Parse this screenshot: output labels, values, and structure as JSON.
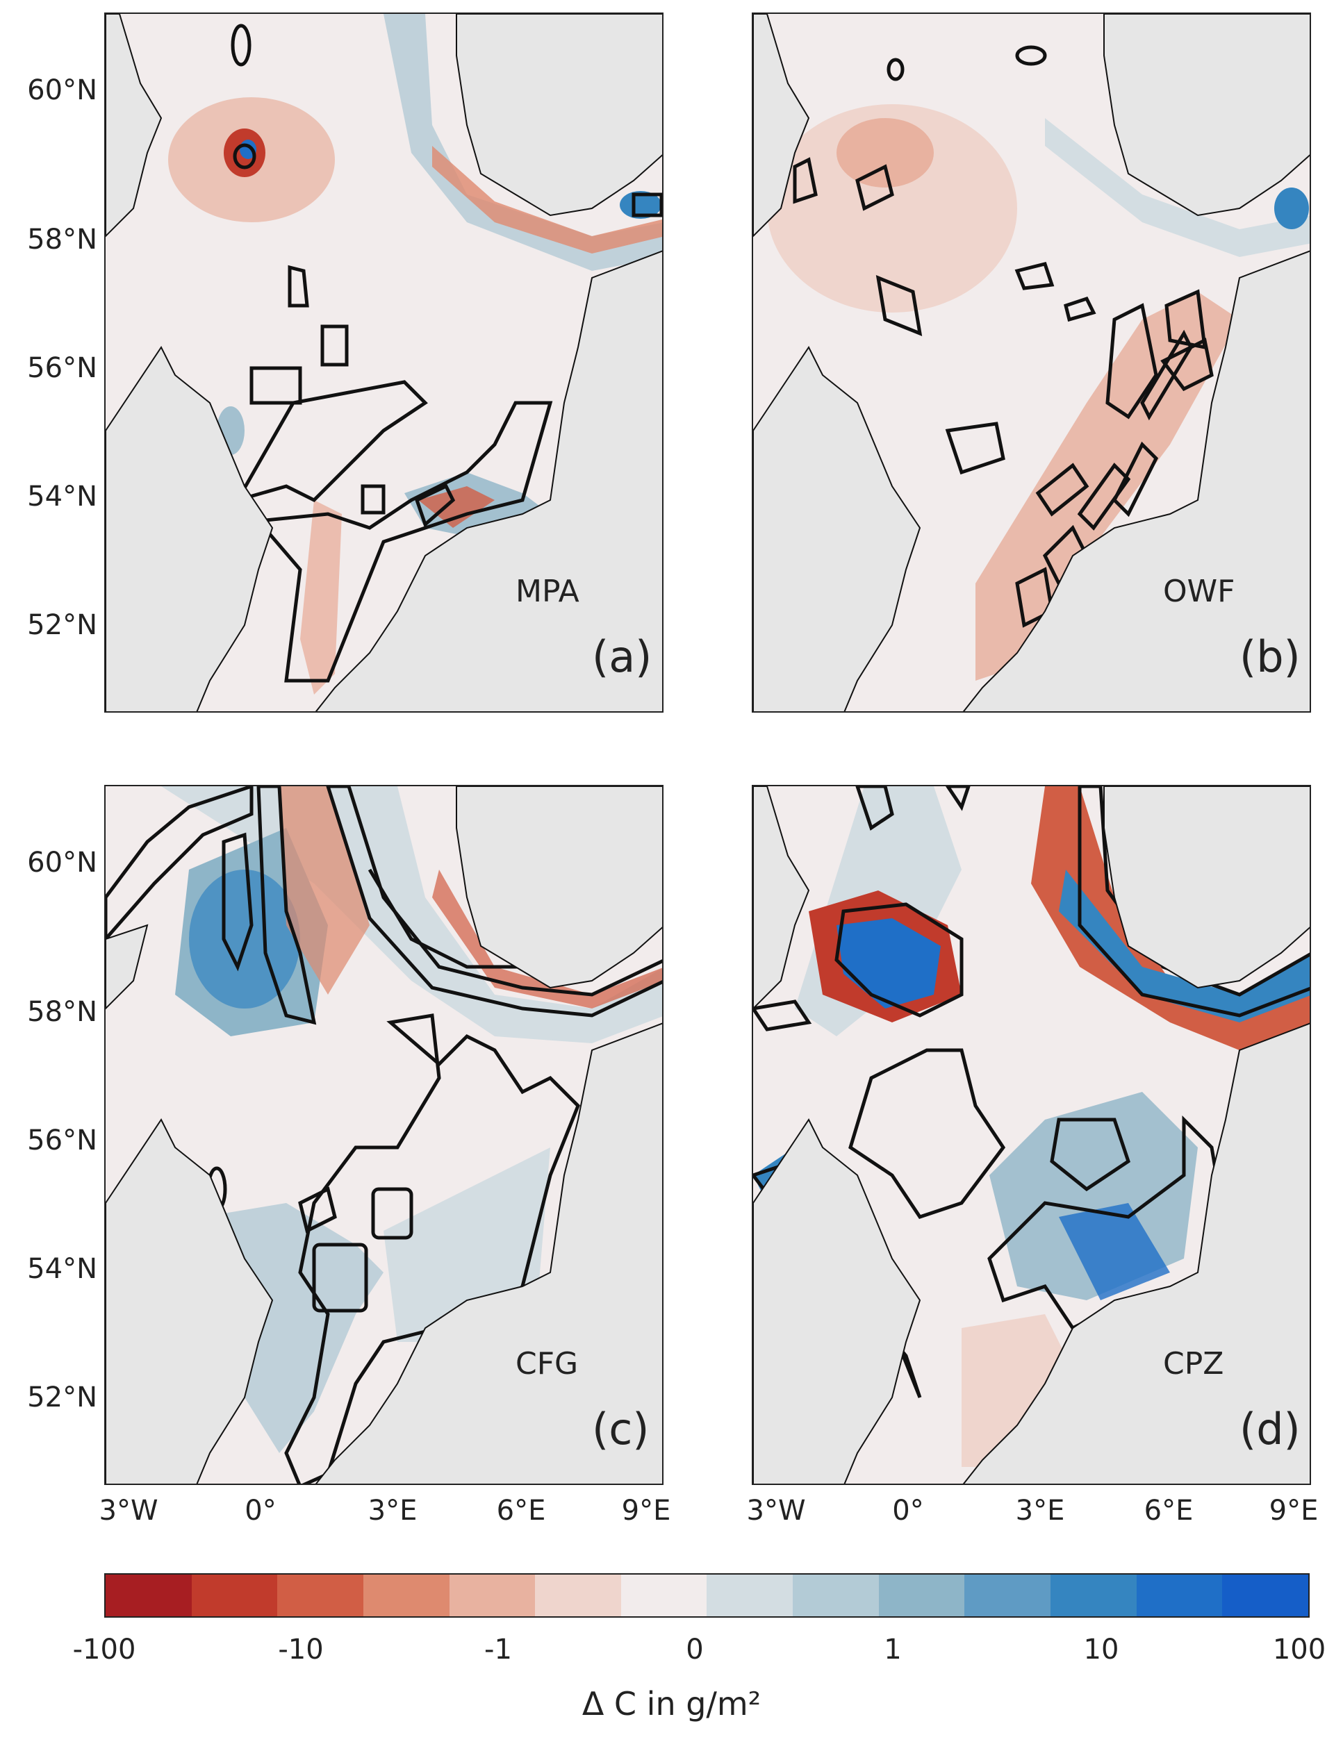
{
  "panels": [
    {
      "id": "a",
      "label": "(a)",
      "zone": "MPA"
    },
    {
      "id": "b",
      "label": "(b)",
      "zone": "OWF"
    },
    {
      "id": "c",
      "label": "(c)",
      "zone": "CFG"
    },
    {
      "id": "d",
      "label": "(d)",
      "zone": "CPZ"
    }
  ],
  "axes": {
    "lat_labels": [
      "60°N",
      "58°N",
      "56°N",
      "54°N",
      "52°N"
    ],
    "lon_labels": [
      "3°W",
      "0°",
      "3°E",
      "6°E",
      "9°E"
    ]
  },
  "colorbar": {
    "title": "Δ C in g/m²",
    "tick_labels": [
      "-100",
      "-10",
      "-1",
      "0",
      "1",
      "10",
      "100"
    ],
    "colors": [
      "#a71e22",
      "#c13b2c",
      "#d15e45",
      "#de8a6f",
      "#e8b2a0",
      "#efd5cd",
      "#f2ecec",
      "#d3dde2",
      "#b3cbd6",
      "#8eb5c8",
      "#5f9bc4",
      "#3585c0",
      "#1f6fc7",
      "#155ec8"
    ]
  },
  "colors": {
    "land": "#e6e6e6",
    "sea_neutral": "#f2ecec",
    "coast": "#111111"
  }
}
